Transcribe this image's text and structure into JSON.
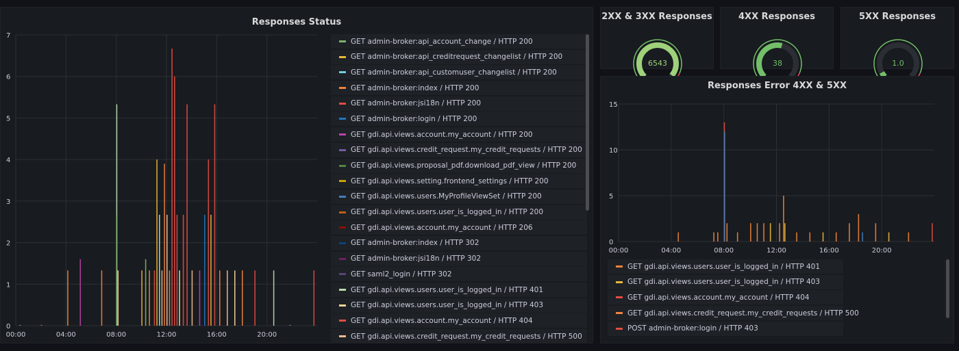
{
  "panels": {
    "status": {
      "title": "Responses Status"
    },
    "g2xx": {
      "title": "2XX & 3XX Responses",
      "value": "6543",
      "fraction": 0.98,
      "color": "#9ed17a"
    },
    "g4xx": {
      "title": "4XX Responses",
      "value": "38",
      "fraction": 0.55,
      "color": "#73bf69"
    },
    "g5xx": {
      "title": "5XX Responses",
      "value": "1.0",
      "fraction": 0.06,
      "color": "#73bf69"
    },
    "errors": {
      "title": "Responses Error 4XX & 5XX"
    }
  },
  "chart_data": [
    {
      "type": "bar",
      "title": "Responses Status",
      "x_ticks": [
        "00:00",
        "04:00",
        "08:00",
        "12:00",
        "16:00",
        "20:00"
      ],
      "y_ticks": [
        "0",
        "1",
        "2",
        "3",
        "4",
        "5",
        "6",
        "7"
      ],
      "ylim": [
        0,
        7
      ],
      "grid": true,
      "legend_position": "right",
      "series": [
        {
          "name": "GET admin-broker:api_account_change / HTTP 200",
          "color": "#7eb26d"
        },
        {
          "name": "GET admin-broker:api_creditrequest_changelist / HTTP 200",
          "color": "#eab839"
        },
        {
          "name": "GET admin-broker:api_customuser_changelist / HTTP 200",
          "color": "#6ed0e0"
        },
        {
          "name": "GET admin-broker:index / HTTP 200",
          "color": "#ef843c"
        },
        {
          "name": "GET admin-broker:jsi18n / HTTP 200",
          "color": "#e24d42"
        },
        {
          "name": "GET admin-broker:login / HTTP 200",
          "color": "#1f78c1"
        },
        {
          "name": "GET gdi.api.views.account.my_account / HTTP 200",
          "color": "#ba43a9"
        },
        {
          "name": "GET gdi.api.views.credit_request.my_credit_requests / HTTP 200",
          "color": "#705da0"
        },
        {
          "name": "GET gdi.api.views.proposal_pdf.download_pdf_view / HTTP 200",
          "color": "#508642"
        },
        {
          "name": "GET gdi.api.views.setting.frontend_settings / HTTP 200",
          "color": "#cca300"
        },
        {
          "name": "GET gdi.api.views.users.MyProfileViewSet / HTTP 200",
          "color": "#447ebc"
        },
        {
          "name": "GET gdi.api.views.users.user_is_logged_in / HTTP 200",
          "color": "#c15c17"
        },
        {
          "name": "GET gdi.api.views.account.my_account / HTTP 206",
          "color": "#890f02"
        },
        {
          "name": "GET admin-broker:index / HTTP 302",
          "color": "#0a437c"
        },
        {
          "name": "GET admin-broker:jsi18n / HTTP 302",
          "color": "#6d1f62"
        },
        {
          "name": "GET saml2_login / HTTP 302",
          "color": "#584477"
        },
        {
          "name": "GET gdi.api.views.users.user_is_logged_in / HTTP 401",
          "color": "#b7dbab"
        },
        {
          "name": "GET gdi.api.views.users.user_is_logged_in / HTTP 403",
          "color": "#f4d598"
        },
        {
          "name": "GET gdi.api.views.account.my_account / HTTP 404",
          "color": "#e24d42"
        },
        {
          "name": "GET gdi.api.views.credit_request.my_credit_requests / HTTP 500",
          "color": "#f9ba8f"
        }
      ],
      "spikes": [
        {
          "t": 0.3,
          "v": 0.02,
          "c": "#7eb26d"
        },
        {
          "t": 2.0,
          "v": 0.02,
          "c": "#ef843c"
        },
        {
          "t": 4.1,
          "v": 1.33,
          "c": "#ef843c"
        },
        {
          "t": 5.1,
          "v": 1.6,
          "c": "#ba43a9"
        },
        {
          "t": 6.8,
          "v": 1.33,
          "c": "#ef843c"
        },
        {
          "t": 8.0,
          "v": 5.33,
          "c": "#b7dbab"
        },
        {
          "t": 8.0,
          "v": 2.67,
          "c": "#7eb26d"
        },
        {
          "t": 8.1,
          "v": 1.33,
          "c": "#f4d598"
        },
        {
          "t": 10.0,
          "v": 1.33,
          "c": "#eab839"
        },
        {
          "t": 10.3,
          "v": 1.6,
          "c": "#7eb26d"
        },
        {
          "t": 10.6,
          "v": 1.33,
          "c": "#ef843c"
        },
        {
          "t": 11.0,
          "v": 1.33,
          "c": "#e24d42"
        },
        {
          "t": 11.2,
          "v": 4.0,
          "c": "#eab839"
        },
        {
          "t": 11.4,
          "v": 2.67,
          "c": "#b7dbab"
        },
        {
          "t": 11.6,
          "v": 1.33,
          "c": "#f9ba8f"
        },
        {
          "t": 11.8,
          "v": 3.9,
          "c": "#ef843c"
        },
        {
          "t": 12.0,
          "v": 2.67,
          "c": "#f9ba8f"
        },
        {
          "t": 12.2,
          "v": 1.33,
          "c": "#ef843c"
        },
        {
          "t": 12.4,
          "v": 6.67,
          "c": "#e24d42"
        },
        {
          "t": 12.6,
          "v": 6.0,
          "c": "#e24d42"
        },
        {
          "t": 12.8,
          "v": 2.67,
          "c": "#e24d42"
        },
        {
          "t": 13.0,
          "v": 1.33,
          "c": "#f4d598"
        },
        {
          "t": 13.3,
          "v": 2.67,
          "c": "#e24d42"
        },
        {
          "t": 13.6,
          "v": 5.33,
          "c": "#e24d42"
        },
        {
          "t": 14.0,
          "v": 1.33,
          "c": "#f9ba8f"
        },
        {
          "t": 14.6,
          "v": 1.33,
          "c": "#ba43a9"
        },
        {
          "t": 15.0,
          "v": 2.67,
          "c": "#1f78c1"
        },
        {
          "t": 15.3,
          "v": 4.0,
          "c": "#e24d42"
        },
        {
          "t": 15.5,
          "v": 2.67,
          "c": "#eab839"
        },
        {
          "t": 15.8,
          "v": 5.33,
          "c": "#e24d42"
        },
        {
          "t": 16.2,
          "v": 1.33,
          "c": "#ef843c"
        },
        {
          "t": 16.8,
          "v": 1.33,
          "c": "#f9ba8f"
        },
        {
          "t": 17.4,
          "v": 1.33,
          "c": "#f4d598"
        },
        {
          "t": 18.0,
          "v": 1.33,
          "c": "#ef843c"
        },
        {
          "t": 19.0,
          "v": 1.33,
          "c": "#e24d42"
        },
        {
          "t": 20.5,
          "v": 1.33,
          "c": "#b7dbab"
        },
        {
          "t": 21.8,
          "v": 0.02,
          "c": "#7eb26d"
        },
        {
          "t": 23.7,
          "v": 1.33,
          "c": "#e24d42"
        }
      ]
    },
    {
      "type": "bar",
      "title": "Responses Error 4XX & 5XX",
      "x_ticks": [
        "00:00",
        "04:00",
        "08:00",
        "12:00",
        "16:00",
        "20:00"
      ],
      "y_ticks": [
        "0",
        "5",
        "10",
        "15"
      ],
      "ylim": [
        0,
        15
      ],
      "grid": true,
      "legend_position": "bottom",
      "series": [
        {
          "name": "GET gdi.api.views.users.user_is_logged_in / HTTP 401",
          "color": "#ef843c"
        },
        {
          "name": "GET gdi.api.views.users.user_is_logged_in / HTTP 403",
          "color": "#eab839"
        },
        {
          "name": "GET gdi.api.views.account.my_account / HTTP 404",
          "color": "#e24d42"
        },
        {
          "name": "GET gdi.api.views.credit_request.my_credit_requests / HTTP 500",
          "color": "#ef843c"
        },
        {
          "name": "POST admin-broker:login / HTTP 403",
          "color": "#e24d42"
        }
      ],
      "spikes": [
        {
          "t": 4.5,
          "v": 1,
          "c": "#ef843c"
        },
        {
          "t": 7.2,
          "v": 1,
          "c": "#ef843c"
        },
        {
          "t": 7.5,
          "v": 1,
          "c": "#ef843c"
        },
        {
          "t": 8.0,
          "v": 13,
          "c": "#e24d42"
        },
        {
          "t": 8.02,
          "v": 12,
          "c": "#447ebc"
        },
        {
          "t": 8.2,
          "v": 2,
          "c": "#ef843c"
        },
        {
          "t": 9.0,
          "v": 1,
          "c": "#ef843c"
        },
        {
          "t": 10.0,
          "v": 2,
          "c": "#ef843c"
        },
        {
          "t": 10.5,
          "v": 2,
          "c": "#ef843c"
        },
        {
          "t": 11.0,
          "v": 2,
          "c": "#ef843c"
        },
        {
          "t": 11.5,
          "v": 2,
          "c": "#eab839"
        },
        {
          "t": 12.2,
          "v": 2,
          "c": "#ef843c"
        },
        {
          "t": 12.5,
          "v": 5,
          "c": "#ef843c"
        },
        {
          "t": 12.6,
          "v": 2,
          "c": "#eab839"
        },
        {
          "t": 13.5,
          "v": 1,
          "c": "#ef843c"
        },
        {
          "t": 14.5,
          "v": 1,
          "c": "#ef843c"
        },
        {
          "t": 15.5,
          "v": 1,
          "c": "#eab839"
        },
        {
          "t": 16.5,
          "v": 1,
          "c": "#ef843c"
        },
        {
          "t": 17.5,
          "v": 2,
          "c": "#ef843c"
        },
        {
          "t": 18.2,
          "v": 3,
          "c": "#ef843c"
        },
        {
          "t": 18.5,
          "v": 1,
          "c": "#447ebc"
        },
        {
          "t": 19.5,
          "v": 2,
          "c": "#ef843c"
        },
        {
          "t": 20.5,
          "v": 1,
          "c": "#eab839"
        },
        {
          "t": 22.0,
          "v": 1,
          "c": "#ef843c"
        },
        {
          "t": 23.8,
          "v": 2,
          "c": "#e24d42"
        }
      ]
    }
  ]
}
